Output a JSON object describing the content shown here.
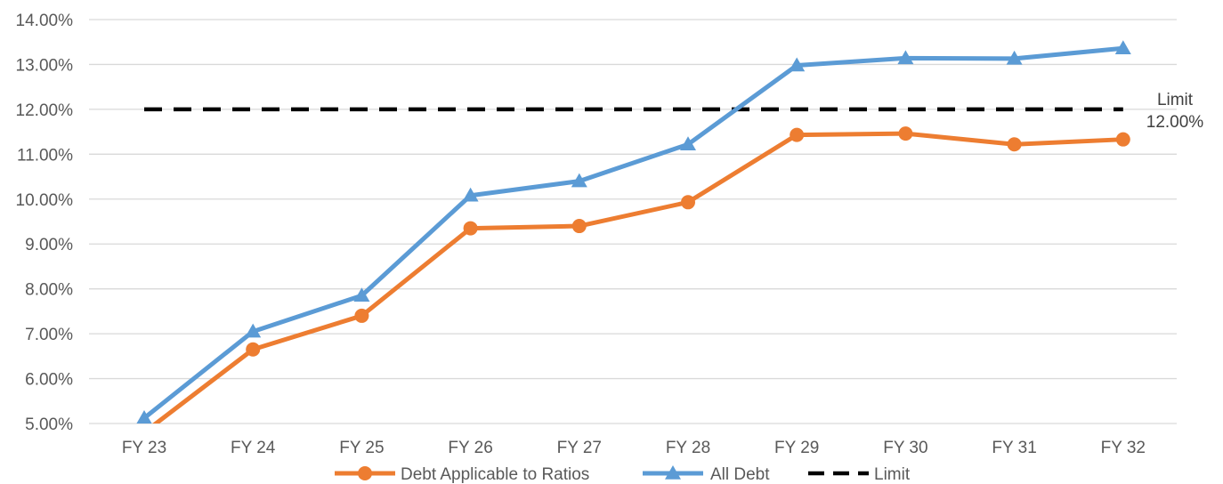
{
  "chart_data": {
    "type": "line",
    "title": "",
    "xlabel": "",
    "ylabel": "",
    "ylim": [
      5.0,
      14.0
    ],
    "y_tick_step": 1.0,
    "y_tick_format": "percent_2dp",
    "grid": "horizontal",
    "legend_position": "bottom",
    "categories": [
      "FY 23",
      "FY 24",
      "FY 25",
      "FY 26",
      "FY 27",
      "FY 28",
      "FY 29",
      "FY 30",
      "FY 31",
      "FY 32"
    ],
    "series": [
      {
        "name": "Debt Applicable to Ratios",
        "color": "#ED7D31",
        "marker": "circle",
        "values": [
          4.8,
          6.65,
          7.4,
          9.35,
          9.4,
          9.93,
          11.43,
          11.46,
          11.22,
          11.33
        ]
      },
      {
        "name": "All Debt",
        "color": "#5B9BD5",
        "marker": "triangle",
        "values": [
          5.12,
          7.05,
          7.85,
          10.08,
          10.4,
          11.22,
          12.98,
          13.14,
          13.13,
          13.36
        ]
      },
      {
        "name": "Limit",
        "color": "#000000",
        "style": "dashed",
        "values": [
          12.0,
          12.0,
          12.0,
          12.0,
          12.0,
          12.0,
          12.0,
          12.0,
          12.0,
          12.0
        ]
      }
    ],
    "annotations": [
      {
        "line1": "Limit",
        "line2": "12.00%",
        "series": "Limit"
      }
    ]
  }
}
